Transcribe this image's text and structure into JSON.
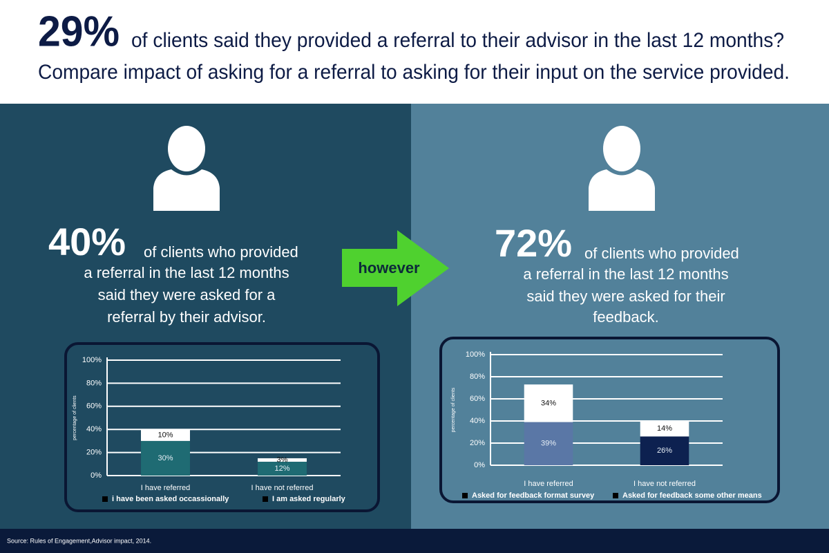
{
  "header": {
    "highlight": "29%",
    "line1": "of clients said they provided a referral to their advisor in the last 12 months?",
    "line2": "Compare impact of asking for a referral to asking for their input on the service provided."
  },
  "left": {
    "stat": "40%",
    "lines": [
      "of clients who provided",
      "a referral in the last 12 months",
      "said they were asked for a",
      "referral by their advisor."
    ]
  },
  "arrow_label": "however",
  "right": {
    "stat": "72%",
    "lines": [
      "of clients who provided",
      "a referral in the last 12 months",
      "said they were asked for their",
      "feedback."
    ]
  },
  "chart_data": [
    {
      "type": "stacked_bar",
      "ylabel": "percentage of clients",
      "categories": [
        "I have referred",
        "I have  not referred"
      ],
      "series": [
        {
          "name": "i have been asked occassionally",
          "colors": [
            "#1f6b73",
            "#1f6b73"
          ],
          "values": [
            30,
            12
          ],
          "value_labels": [
            "30%",
            "12%"
          ]
        },
        {
          "name": "I am asked regularly",
          "colors": [
            "#ffffff",
            "#ffffff"
          ],
          "values": [
            10,
            3
          ],
          "value_labels": [
            "10%",
            "3%"
          ]
        }
      ],
      "legend_marker_color": "#000000",
      "ylim": [
        0,
        100
      ],
      "yticks": [
        {
          "value": 0,
          "label": "0%"
        },
        {
          "value": 20,
          "label": "20%"
        },
        {
          "value": 40,
          "label": "40%"
        },
        {
          "value": 60,
          "label": "60%"
        },
        {
          "value": 80,
          "label": "80%"
        },
        {
          "value": 100,
          "label": "100%"
        }
      ],
      "grid": true
    },
    {
      "type": "stacked_bar",
      "ylabel": "percentage of clients",
      "categories": [
        "I have referred",
        "I have  not referred"
      ],
      "series": [
        {
          "name": "Asked for feedback format survey",
          "colors": [
            "#5a77a6",
            "#0d2150"
          ],
          "values": [
            39,
            26
          ],
          "value_labels": [
            "39%",
            "26%"
          ]
        },
        {
          "name": "Asked for feedback some other means",
          "colors": [
            "#ffffff",
            "#ffffff"
          ],
          "values": [
            34,
            14
          ],
          "value_labels": [
            "34%",
            "14%"
          ]
        }
      ],
      "legend_marker_color": "#000000",
      "ylim": [
        0,
        100
      ],
      "yticks": [
        {
          "value": 0,
          "label": "0%"
        },
        {
          "value": 20,
          "label": "20%"
        },
        {
          "value": 40,
          "label": "40%"
        },
        {
          "value": 60,
          "label": "60%"
        },
        {
          "value": 80,
          "label": "80%"
        },
        {
          "value": 100,
          "label": "100%"
        }
      ],
      "grid": true
    }
  ],
  "source": "Source: Rules of Engagement,Advisor impact, 2014."
}
